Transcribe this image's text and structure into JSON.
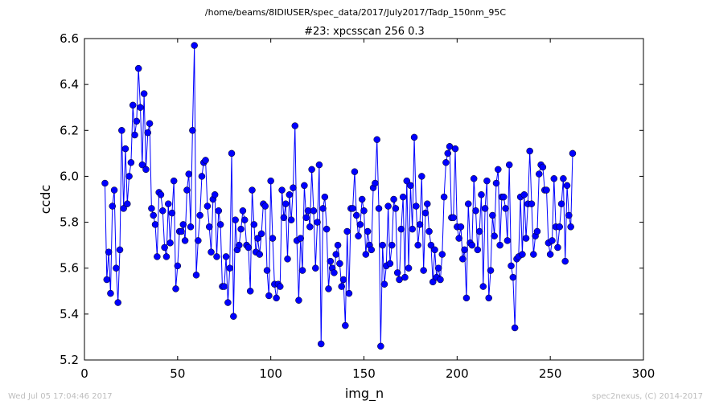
{
  "figure": {
    "suptitle": "/home/beams/8IDIUSER/spec_data/2017/July2017/Tadp_150nm_95C",
    "timestamp": "Wed Jul 05 17:04:46 2017",
    "credit": "spec2nexus, (C) 2014-2017"
  },
  "chart_data": {
    "type": "line",
    "title": "#23: xpcsscan 256 0.3",
    "xlabel": "img_n",
    "ylabel": "ccdc",
    "xlim": [
      0,
      300
    ],
    "ylim": [
      5.2,
      6.6
    ],
    "xticks": [
      0,
      50,
      100,
      150,
      200,
      250,
      300
    ],
    "yticks": [
      5.2,
      5.4,
      5.6,
      5.8,
      6.0,
      6.2,
      6.4,
      6.6
    ],
    "grid": false,
    "marker": "circle",
    "color": "#0000ff",
    "series": [
      {
        "x_start": 11,
        "x_step": 1,
        "values": [
          5.97,
          5.55,
          5.67,
          5.49,
          5.87,
          5.94,
          5.6,
          5.45,
          5.68,
          6.2,
          5.86,
          6.12,
          5.88,
          6.0,
          6.06,
          6.31,
          6.18,
          6.24,
          6.47,
          6.3,
          6.05,
          6.36,
          6.03,
          6.19,
          6.23,
          5.86,
          5.83,
          5.79,
          5.65,
          5.93,
          5.92,
          5.85,
          5.69,
          5.65,
          5.88,
          5.71,
          5.84,
          5.98,
          5.51,
          5.61,
          5.76,
          5.76,
          5.79,
          5.72,
          5.94,
          6.01,
          5.78,
          6.2,
          6.57,
          5.57,
          5.72,
          5.83,
          6.0,
          6.06,
          6.07,
          5.87,
          5.78,
          5.67,
          5.9,
          5.92,
          5.65,
          5.85,
          5.79,
          5.52,
          5.52,
          5.65,
          5.45,
          5.6,
          6.1,
          5.39,
          5.81,
          5.68,
          5.7,
          5.77,
          5.85,
          5.81,
          5.7,
          5.69,
          5.5,
          5.94,
          5.79,
          5.67,
          5.73,
          5.66,
          5.75,
          5.88,
          5.87,
          5.59,
          5.48,
          5.98,
          5.73,
          5.53,
          5.47,
          5.53,
          5.52,
          5.94,
          5.82,
          5.88,
          5.64,
          5.92,
          5.81,
          5.95,
          6.22,
          5.72,
          5.46,
          5.73,
          5.59,
          5.96,
          5.82,
          5.85,
          5.78,
          6.03,
          5.85,
          5.6,
          5.8,
          6.05,
          5.27,
          5.86,
          5.91,
          5.77,
          5.51,
          5.63,
          5.6,
          5.58,
          5.66,
          5.7,
          5.62,
          5.52,
          5.55,
          5.35,
          5.76,
          5.49,
          5.86,
          5.86,
          6.02,
          5.83,
          5.74,
          5.79,
          5.9,
          5.85,
          5.66,
          5.76,
          5.7,
          5.68,
          5.95,
          5.97,
          6.16,
          5.86,
          5.26,
          5.7,
          5.53,
          5.61,
          5.87,
          5.62,
          5.7,
          5.9,
          5.86,
          5.58,
          5.55,
          5.77,
          5.91,
          5.56,
          5.98,
          5.6,
          5.96,
          5.77,
          6.17,
          5.87,
          5.7,
          5.79,
          6.0,
          5.59,
          5.84,
          5.88,
          5.76,
          5.7,
          5.54,
          5.68,
          5.56,
          5.6,
          5.55,
          5.66,
          5.91,
          6.06,
          6.1,
          6.13,
          5.82,
          5.82,
          6.12,
          5.78,
          5.73,
          5.78,
          5.64,
          5.68,
          5.47,
          5.88,
          5.71,
          5.7,
          5.99,
          5.85,
          5.68,
          5.76,
          5.92,
          5.52,
          5.86,
          5.98,
          5.47,
          5.59,
          5.83,
          5.74,
          5.97,
          6.03,
          5.7,
          5.91,
          5.91,
          5.86,
          5.72,
          6.05,
          5.61,
          5.56,
          5.34,
          5.64,
          5.65,
          5.91,
          5.66,
          5.92,
          5.73,
          5.88,
          6.11,
          5.88,
          5.66,
          5.74,
          5.76,
          6.01,
          6.05,
          6.04,
          5.94,
          5.94,
          5.71,
          5.66,
          5.72,
          5.99,
          5.78,
          5.69,
          5.78,
          5.88,
          5.99,
          5.63,
          5.96,
          5.83,
          5.78,
          6.1
        ]
      }
    ]
  }
}
